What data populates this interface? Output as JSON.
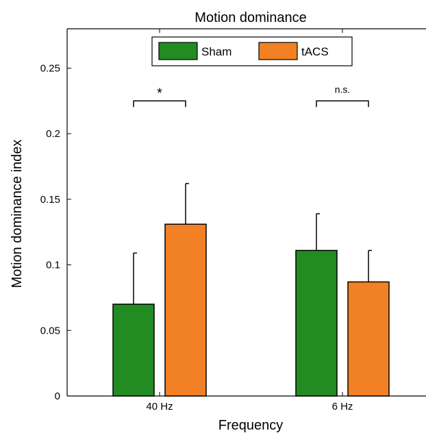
{
  "chart_data": {
    "type": "bar",
    "title": "Motion dominance",
    "xlabel": "Frequency",
    "ylabel": "Motion dominance index",
    "categories": [
      "40 Hz",
      "6 Hz"
    ],
    "series": [
      {
        "name": "Sham",
        "color": "#228b22",
        "values": [
          0.07,
          0.111
        ],
        "errors": [
          0.039,
          0.028
        ]
      },
      {
        "name": "tACS",
        "color": "#f28024",
        "values": [
          0.131,
          0.087
        ],
        "errors": [
          0.031,
          0.024
        ]
      }
    ],
    "ylim": [
      0,
      0.28
    ],
    "yticks": [
      0,
      0.05,
      0.1,
      0.15,
      0.2,
      0.25
    ],
    "ytick_labels": [
      "0",
      "0.05",
      "0.1",
      "0.15",
      "0.2",
      "0.25"
    ],
    "significance": [
      {
        "category": "40 Hz",
        "label": "*",
        "y": 0.225
      },
      {
        "category": "6 Hz",
        "label": "n.s.",
        "y": 0.225
      }
    ],
    "legend_position": "top-center",
    "grid": false
  }
}
